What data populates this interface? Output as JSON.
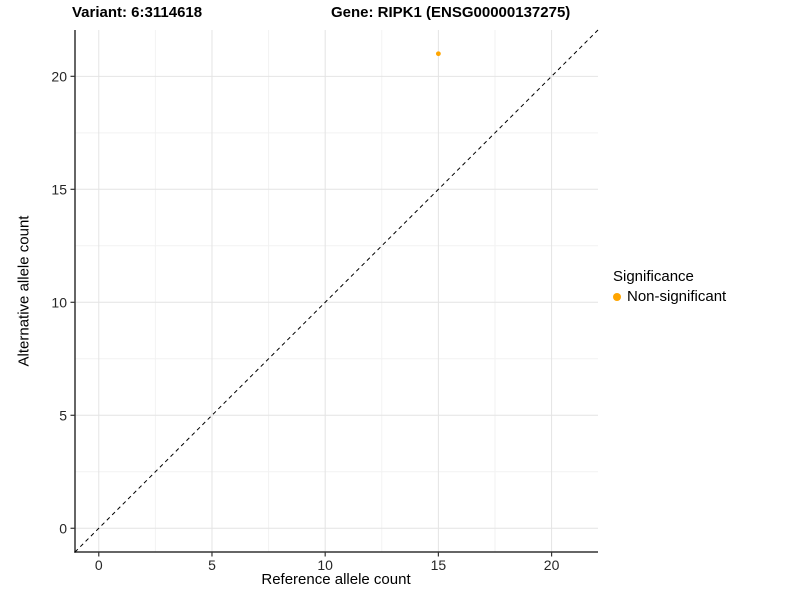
{
  "titles": {
    "variant": "Variant: 6:3114618",
    "gene": "Gene: RIPK1 (ENSG00000137275)"
  },
  "chart_data": {
    "type": "scatter",
    "xlabel": "Reference allele count",
    "ylabel": "Alternative allele count",
    "xlim": [
      -1.05,
      22.05
    ],
    "ylim": [
      -1.05,
      22.05
    ],
    "x_ticks": [
      0,
      5,
      10,
      15,
      20
    ],
    "y_ticks": [
      0,
      5,
      10,
      15,
      20
    ],
    "minor_ticks": [
      2.5,
      7.5,
      12.5,
      17.5
    ],
    "grid": true,
    "points": [
      {
        "x": 15,
        "y": 21,
        "series": "Non-significant"
      }
    ],
    "identity_line": {
      "style": "dashed",
      "equation": "y = x",
      "color": "#000000"
    },
    "colors": {
      "point": "#FFA500",
      "grid_major": "#e4e4e4",
      "grid_minor": "#f2f2f2",
      "axis_line": "#333333",
      "tick_label": "#262626"
    },
    "legend": {
      "title": "Significance",
      "position": "right",
      "items": [
        {
          "label": "Non-significant",
          "color": "#FFA500"
        }
      ]
    }
  }
}
